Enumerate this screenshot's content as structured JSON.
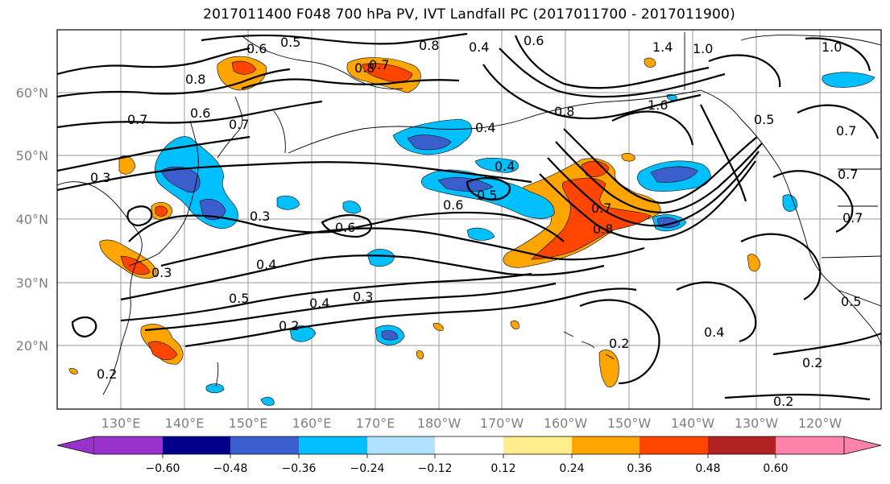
{
  "title": "2017011400 F048 700 hPa PV, IVT Landfall PC (2017011700 - 2017011900)",
  "map": {
    "lat_labels": [
      "60°N",
      "50°N",
      "40°N",
      "30°N",
      "20°N"
    ],
    "lon_labels": [
      "130°E",
      "140°E",
      "150°E",
      "160°E",
      "170°E",
      "180°W",
      "170°W",
      "160°W",
      "150°W",
      "140°W",
      "130°W",
      "120°W"
    ],
    "contour_labels": [
      "0.5",
      "0.6",
      "0.8",
      "0.7",
      "0.8",
      "0.4",
      "0.6",
      "1.4",
      "1.0",
      "1.0",
      "0.7",
      "0.8",
      "0.7",
      "0.6",
      "0.5",
      "0.4",
      "0.8",
      "1.6",
      "0.7",
      "0.7",
      "0.4",
      "0.3",
      "0.3",
      "0.6",
      "0.5",
      "0.6",
      "0.7",
      "0.8",
      "0.7",
      "0.4",
      "0.3",
      "0.5",
      "0.4",
      "0.3",
      "0.2",
      "0.2",
      "0.4",
      "0.2",
      "0.5",
      "0.2",
      "0.2"
    ]
  },
  "colorbar": {
    "ticks": [
      "−0.60",
      "−0.48",
      "−0.36",
      "−0.24",
      "−0.12",
      "0.12",
      "0.24",
      "0.36",
      "0.48",
      "0.60"
    ],
    "colors": [
      "#9932cc",
      "#00008b",
      "#3a5fcd",
      "#00bfff",
      "#b0e2ff",
      "#ffffff",
      "#ffec8b",
      "#ffa500",
      "#ff4500",
      "#b22222",
      "#ff82ab"
    ]
  }
}
